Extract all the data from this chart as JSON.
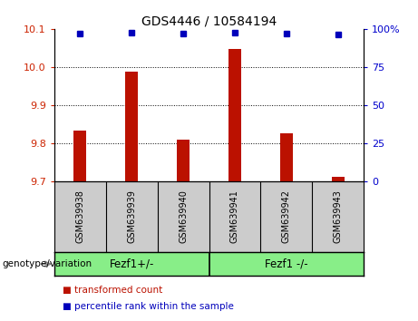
{
  "title": "GDS4446 / 10584194",
  "samples": [
    "GSM639938",
    "GSM639939",
    "GSM639940",
    "GSM639941",
    "GSM639942",
    "GSM639943"
  ],
  "bar_values": [
    9.834,
    9.988,
    9.81,
    10.048,
    9.825,
    9.712
  ],
  "percentile_values": [
    97,
    97.5,
    97,
    97.5,
    97,
    96.5
  ],
  "ylim_left": [
    9.7,
    10.1
  ],
  "ylim_right": [
    0,
    100
  ],
  "yticks_left": [
    9.7,
    9.8,
    9.9,
    10.0,
    10.1
  ],
  "yticks_right": [
    0,
    25,
    50,
    75,
    100
  ],
  "bar_color": "#bb1100",
  "dot_color": "#0000bb",
  "group1_label": "Fezf1+/-",
  "group2_label": "Fezf1 -/-",
  "group1_indices": [
    0,
    1,
    2
  ],
  "group2_indices": [
    3,
    4,
    5
  ],
  "group_color": "#88ee88",
  "xlabel_group": "genotype/variation",
  "legend_bar": "transformed count",
  "legend_dot": "percentile rank within the sample",
  "tick_color_left": "#cc2200",
  "tick_color_right": "#0000cc",
  "grid_color": "#000000",
  "label_area_color": "#cccccc",
  "background_color": "#ffffff",
  "bar_width": 0.25
}
